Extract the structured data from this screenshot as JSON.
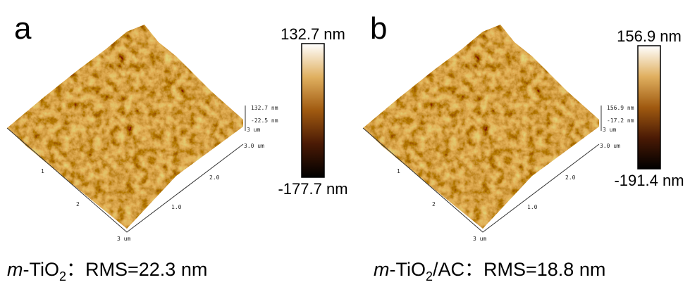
{
  "panels": [
    {
      "label": "a",
      "scale_max": "132.7 nm",
      "scale_min": "-177.7 nm",
      "z_labels": [
        "132.7 nm",
        "-22.5 nm",
        "3 um"
      ],
      "right_axis": [
        "3.0 um",
        "2.0",
        "1.0"
      ],
      "left_axis": [
        "1",
        "2",
        "3 um"
      ],
      "caption": {
        "italic": "m",
        "main": "-TiO",
        "sub": "2",
        "rest": "：RMS=22.3 nm"
      }
    },
    {
      "label": "b",
      "scale_max": "156.9 nm",
      "scale_min": "-191.4 nm",
      "z_labels": [
        "156.9 nm",
        "-17.2 nm",
        "3 um"
      ],
      "right_axis": [
        "3.0 um",
        "2.0",
        "1.0"
      ],
      "left_axis": [
        "1",
        "2",
        "3 um"
      ],
      "caption": {
        "italic": "m",
        "main": "-TiO",
        "sub": "2",
        "rest": "/AC：RMS=18.8 nm"
      }
    }
  ]
}
